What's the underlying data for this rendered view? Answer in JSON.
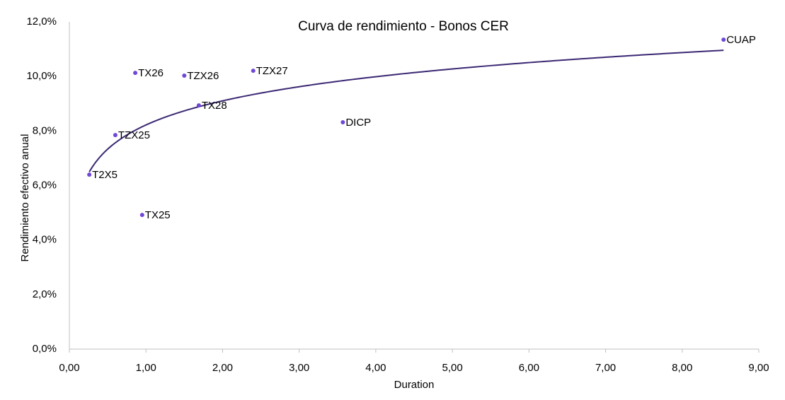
{
  "chart_data": {
    "type": "scatter",
    "title": "Curva de rendimiento - Bonos CER",
    "xlabel": "Duration",
    "ylabel": "Rendimiento efectivo anual",
    "series": [
      {
        "color": "#7048d8",
        "labels": [
          "T2X5",
          "TZX25",
          "TX26",
          "TX25",
          "TZX26",
          "TX28",
          "TZX27",
          "DICP",
          "CUAP"
        ],
        "x": [
          0.26,
          0.6,
          0.86,
          0.95,
          1.5,
          1.69,
          2.4,
          3.57,
          8.54
        ],
        "values": [
          6.4,
          7.85,
          10.13,
          4.92,
          10.03,
          8.94,
          10.21,
          8.32,
          11.35
        ]
      }
    ],
    "trendline": {
      "type": "logarithmic",
      "coefficients": [
        8.22,
        1.277
      ],
      "color": "#3b2873"
    },
    "xlim": [
      0,
      9
    ],
    "xticks": [
      {
        "value": 0,
        "label": "0,00"
      },
      {
        "value": 1,
        "label": "1,00"
      },
      {
        "value": 2,
        "label": "2,00"
      },
      {
        "value": 3,
        "label": "3,00"
      },
      {
        "value": 4,
        "label": "4,00"
      },
      {
        "value": 5,
        "label": "5,00"
      },
      {
        "value": 6,
        "label": "6,00"
      },
      {
        "value": 7,
        "label": "7,00"
      },
      {
        "value": 8,
        "label": "8,00"
      },
      {
        "value": 9,
        "label": "9,00"
      }
    ],
    "ylim": [
      0,
      12
    ],
    "yticks": [
      {
        "value": 0,
        "label": "0,0%"
      },
      {
        "value": 2,
        "label": "2,0%"
      },
      {
        "value": 4,
        "label": "4,0%"
      },
      {
        "value": 6,
        "label": "6,0%"
      },
      {
        "value": 8,
        "label": "8,0%"
      },
      {
        "value": 10,
        "label": "10,0%"
      },
      {
        "value": 12,
        "label": "12,0%"
      }
    ],
    "grid": false
  }
}
